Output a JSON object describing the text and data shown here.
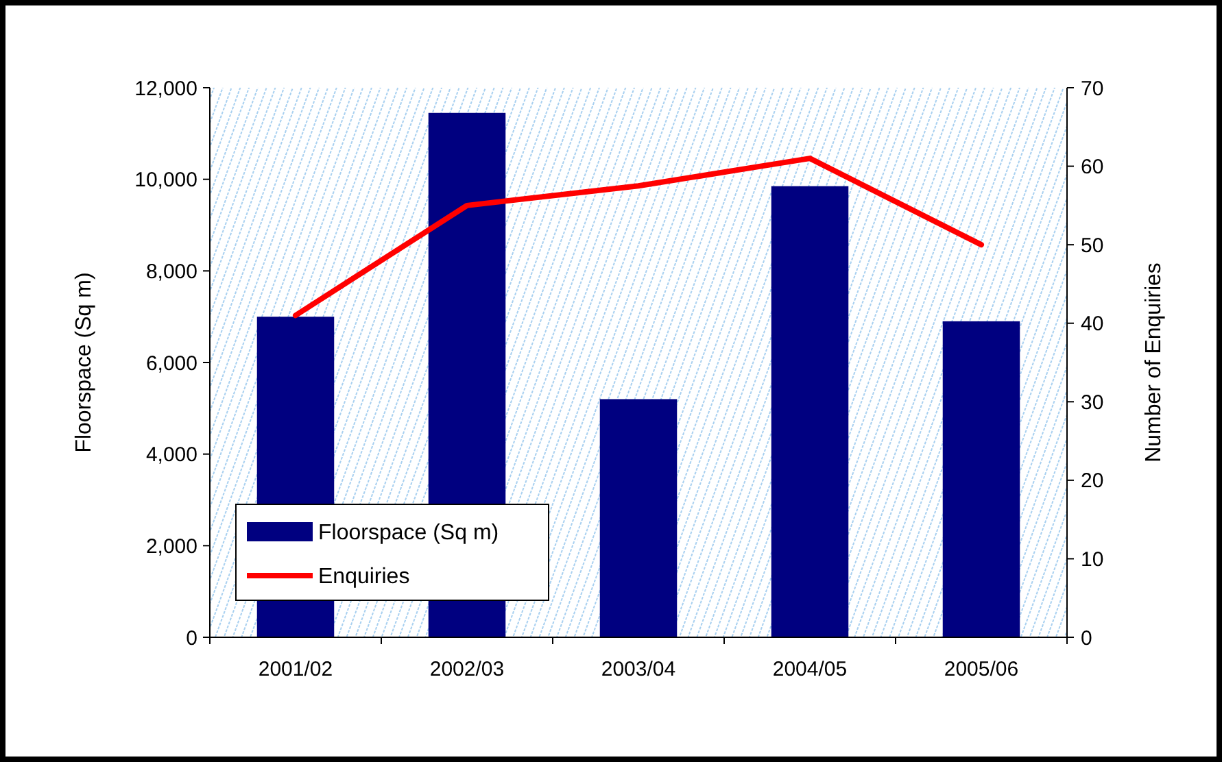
{
  "chart_data": {
    "type": "bar",
    "categories": [
      "2001/02",
      "2002/03",
      "2003/04",
      "2004/05",
      "2005/06"
    ],
    "series": [
      {
        "name": "Floorspace (Sq m)",
        "color": "#000080",
        "values": [
          7000,
          11450,
          5200,
          9850,
          6900
        ]
      },
      {
        "name": "Enquiries",
        "type": "line",
        "axis": "y2",
        "color": "#ff0000",
        "values": [
          41,
          55,
          57.5,
          61,
          50
        ]
      }
    ],
    "ylabel": "Floorspace (Sq m)",
    "y2label": "Number of Enquiries",
    "ylim": [
      0,
      12000
    ],
    "yticks": [
      {
        "value": 0,
        "label": "0"
      },
      {
        "value": 2000,
        "label": "2,000"
      },
      {
        "value": 4000,
        "label": "4,000"
      },
      {
        "value": 6000,
        "label": "6,000"
      },
      {
        "value": 8000,
        "label": "8,000"
      },
      {
        "value": 10000,
        "label": "10,000"
      },
      {
        "value": 12000,
        "label": "12,000"
      }
    ],
    "y2lim": [
      0,
      70
    ],
    "y2ticks": [
      0,
      10,
      20,
      30,
      40,
      50,
      60,
      70
    ],
    "grid": false,
    "legend": "bottom left",
    "marker": "none",
    "line_style": "solid"
  }
}
